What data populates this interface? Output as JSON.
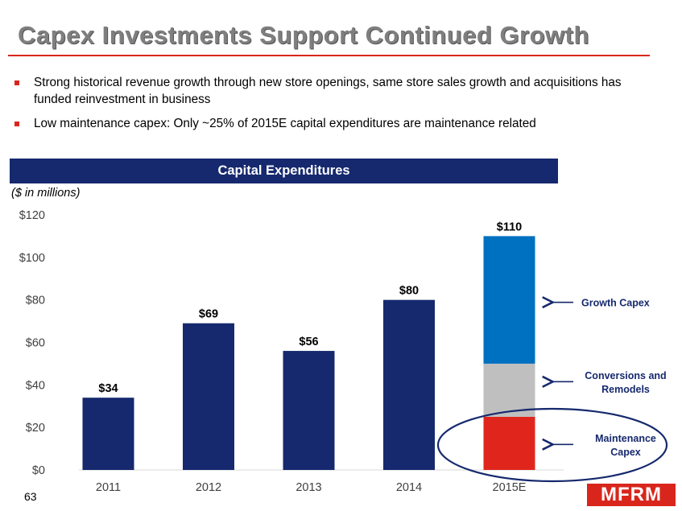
{
  "slide": {
    "title": "Capex Investments Support Continued Growth",
    "bullets": [
      "Strong historical revenue growth through new store openings, same store sales growth and acquisitions has funded reinvestment in business",
      "Low maintenance capex: Only ~25% of 2015E capital expenditures are maintenance related"
    ],
    "chart_banner": "Capital Expenditures",
    "units": "($ in millions)",
    "page_number": "63",
    "logo_text": "MFRM"
  },
  "colors": {
    "bar": "#16296e",
    "growth": "#0070c0",
    "conversions": "#bfbfbf",
    "maintenance": "#e0261c",
    "accent": "#d9261c"
  },
  "chart_data": {
    "type": "bar",
    "categories": [
      "2011",
      "2012",
      "2013",
      "2014",
      "2015E"
    ],
    "values": [
      34,
      69,
      56,
      80,
      110
    ],
    "value_labels": [
      "$34",
      "$69",
      "$56",
      "$80",
      "$110"
    ],
    "ylim": [
      0,
      120
    ],
    "yticks": [
      0,
      20,
      40,
      60,
      80,
      100,
      120
    ],
    "ytick_labels": [
      "$0",
      "$20",
      "$40",
      "$60",
      "$80",
      "$100",
      "$120"
    ],
    "stack_2015E": [
      {
        "name": "Maintenance Capex",
        "value": 25
      },
      {
        "name": "Conversions and Remodels",
        "value": 25
      },
      {
        "name": "Growth Capex",
        "value": 60
      }
    ],
    "annotations": [
      {
        "lines": [
          "Growth Capex"
        ],
        "segment": 2
      },
      {
        "lines": [
          "Conversions and",
          "Remodels"
        ],
        "segment": 1
      },
      {
        "lines": [
          "Maintenance",
          "Capex"
        ],
        "segment": 0
      }
    ],
    "grid": false
  }
}
